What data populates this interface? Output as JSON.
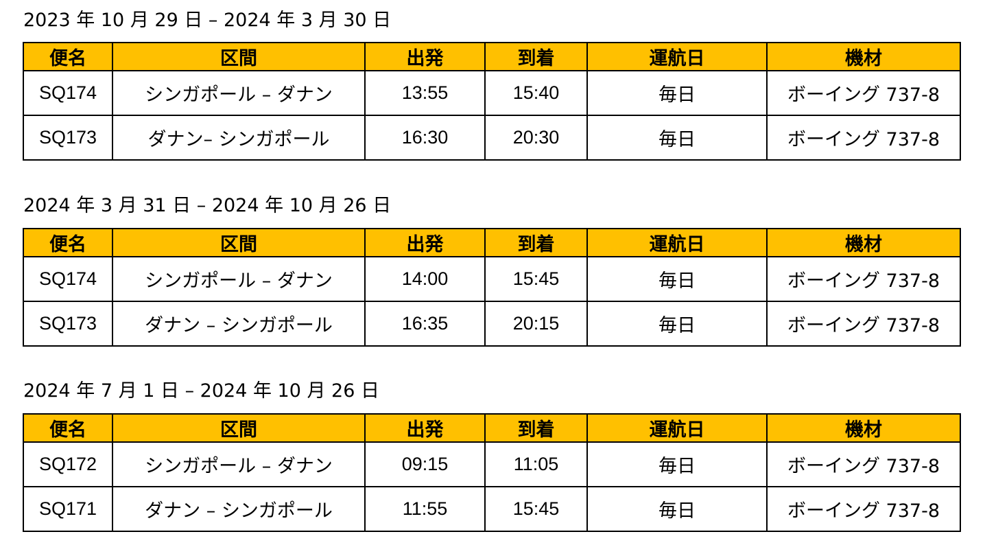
{
  "header_color": "#FFC000",
  "columns": [
    "便名",
    "区間",
    "出発",
    "到着",
    "運航日",
    "機材"
  ],
  "sections": [
    {
      "title": "2023 年 10 月 29 日 – 2024 年 3 月 30 日",
      "rows": [
        [
          "SQ174",
          "シンガポール – ダナン",
          "13:55",
          "15:40",
          "毎日",
          "ボーイング 737-8"
        ],
        [
          "SQ173",
          "ダナン– シンガポール",
          "16:30",
          "20:30",
          "毎日",
          "ボーイング 737-8"
        ]
      ]
    },
    {
      "title": "2024 年 3 月 31 日 – 2024 年 10 月 26 日",
      "rows": [
        [
          "SQ174",
          "シンガポール – ダナン",
          "14:00",
          "15:45",
          "毎日",
          "ボーイング 737-8"
        ],
        [
          "SQ173",
          "ダナン – シンガポール",
          "16:35",
          "20:15",
          "毎日",
          "ボーイング 737-8"
        ]
      ]
    },
    {
      "title": "2024 年 7 月 1 日 – 2024 年 10 月 26 日",
      "rows": [
        [
          "SQ172",
          "シンガポール – ダナン",
          "09:15",
          "11:05",
          "毎日",
          "ボーイング 737-8"
        ],
        [
          "SQ171",
          "ダナン – シンガポール",
          "11:55",
          "15:45",
          "毎日",
          "ボーイング 737-8"
        ]
      ]
    }
  ]
}
